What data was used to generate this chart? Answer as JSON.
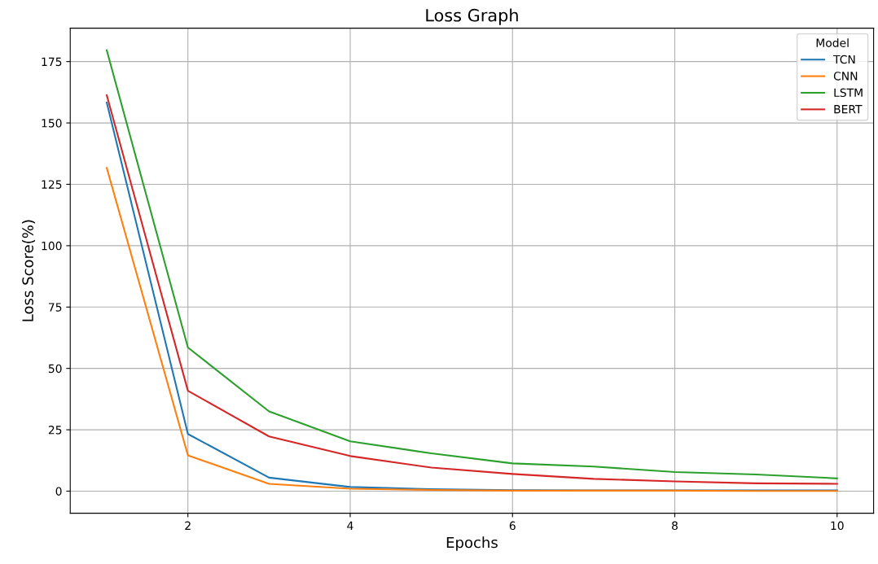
{
  "chart_data": {
    "type": "line",
    "title": "Loss Graph",
    "xlabel": "Epochs",
    "ylabel": "Loss Score(%)",
    "legend_title": "Model",
    "x": [
      1,
      2,
      3,
      4,
      5,
      6,
      7,
      8,
      9,
      10
    ],
    "series": [
      {
        "name": "TCN",
        "color": "#1f77b4",
        "values": [
          158.3,
          23.3,
          5.5,
          1.7,
          0.8,
          0.4,
          0.3,
          0.3,
          0.3,
          0.3
        ]
      },
      {
        "name": "CNN",
        "color": "#ff7f0e",
        "values": [
          131.7,
          14.6,
          3.0,
          1.0,
          0.5,
          0.2,
          0.2,
          0.2,
          0.1,
          0.1
        ]
      },
      {
        "name": "LSTM",
        "color": "#2ca02c",
        "values": [
          179.6,
          58.5,
          32.5,
          20.3,
          15.4,
          11.3,
          10.0,
          7.8,
          6.8,
          5.2
        ]
      },
      {
        "name": "BERT",
        "color": "#d62728",
        "values": [
          161.3,
          40.9,
          22.3,
          14.3,
          9.6,
          7.0,
          5.0,
          4.0,
          3.2,
          3.0
        ]
      }
    ],
    "xlim": [
      0.55,
      10.45
    ],
    "xticks": [
      2,
      4,
      6,
      8,
      10
    ],
    "ylim": [
      -9,
      188.6
    ],
    "yticks": [
      0,
      25,
      50,
      75,
      100,
      125,
      150,
      175
    ],
    "grid": true,
    "legend": "top right",
    "marker": "none",
    "line_style": "solid"
  }
}
